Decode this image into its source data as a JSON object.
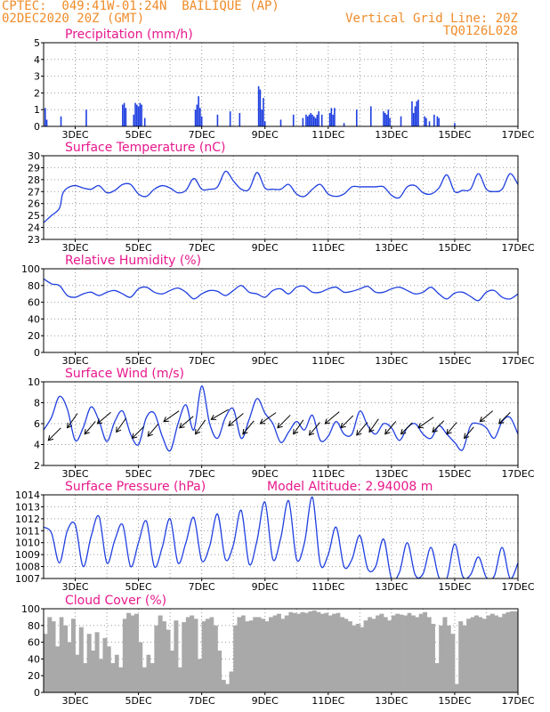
{
  "header": {
    "line1": "CPTEC:  049:41W-01:24N  BAILIQUE (AP)",
    "line2": "02DEC2020 20Z (GMT)",
    "grid_note": "Vertical Grid Line: 20Z",
    "code": "TQ0126L028"
  },
  "colors": {
    "header": "#f08c2a",
    "title": "#e8188c",
    "series": "#1f3fe0",
    "cloud": "#a9a9a9",
    "wind_arrow": "#000000"
  },
  "x_axis": {
    "unit": "day of December 2020 (20Z gridlines)",
    "range": [
      2.0,
      17.0
    ],
    "tick_positions": [
      3,
      5,
      7,
      9,
      11,
      13,
      15,
      17
    ],
    "tick_labels": [
      "3DEC",
      "5DEC",
      "7DEC",
      "9DEC",
      "11DEC",
      "13DEC",
      "15DEC",
      "17DEC"
    ],
    "minor_gridlines": [
      3,
      4,
      5,
      6,
      7,
      8,
      9,
      10,
      11,
      12,
      13,
      14,
      15,
      16
    ]
  },
  "chart_data": [
    {
      "key": "precip",
      "type": "bar",
      "title": "Precipitation (mm/h)",
      "ylim": [
        0,
        5
      ],
      "yticks": [
        0,
        1,
        2,
        3,
        4,
        5
      ],
      "x": [
        2.05,
        2.1,
        2.55,
        3.35,
        4.5,
        4.55,
        4.6,
        4.85,
        4.9,
        4.95,
        5.0,
        5.05,
        5.1,
        5.2,
        6.8,
        6.85,
        6.9,
        6.95,
        7.0,
        7.5,
        7.9,
        8.2,
        8.8,
        8.85,
        8.9,
        8.95,
        9.0,
        9.5,
        9.9,
        10.2,
        10.3,
        10.35,
        10.4,
        10.45,
        10.5,
        10.55,
        10.6,
        10.65,
        10.7,
        10.8,
        11.05,
        11.1,
        11.15,
        11.2,
        11.5,
        11.9,
        12.35,
        12.75,
        12.8,
        12.85,
        12.9,
        12.95,
        13.3,
        13.65,
        13.7,
        13.75,
        13.8,
        13.85,
        14.05,
        14.1,
        14.2,
        14.35,
        14.45,
        14.5,
        15.0
      ],
      "values": [
        1.1,
        0.4,
        0.6,
        1.0,
        1.3,
        1.4,
        1.1,
        0.7,
        1.4,
        1.3,
        1.2,
        1.4,
        1.3,
        0.5,
        1.0,
        1.3,
        1.8,
        1.1,
        0.6,
        0.7,
        0.9,
        0.8,
        2.4,
        2.2,
        1.0,
        1.7,
        0.3,
        0.4,
        0.7,
        0.5,
        0.7,
        0.6,
        0.7,
        0.8,
        0.7,
        0.6,
        0.5,
        0.7,
        0.9,
        0.7,
        0.8,
        1.1,
        0.7,
        1.1,
        0.2,
        1.0,
        1.2,
        0.9,
        0.8,
        0.7,
        1.0,
        0.5,
        0.6,
        1.5,
        0.8,
        1.2,
        1.5,
        1.6,
        0.6,
        0.5,
        0.3,
        0.7,
        0.6,
        0.5,
        0.2
      ]
    },
    {
      "key": "temp",
      "type": "line",
      "title": "Surface Temperature (nC)",
      "ylim": [
        23,
        30
      ],
      "yticks": [
        23,
        24,
        25,
        26,
        27,
        28,
        29,
        30
      ],
      "x": [
        2.0,
        2.25,
        2.5,
        2.6,
        2.75,
        3.0,
        3.25,
        3.5,
        3.75,
        4.0,
        4.25,
        4.5,
        4.75,
        5.0,
        5.25,
        5.5,
        5.75,
        6.0,
        6.25,
        6.5,
        6.75,
        7.0,
        7.25,
        7.5,
        7.75,
        8.0,
        8.25,
        8.5,
        8.75,
        9.0,
        9.25,
        9.5,
        9.75,
        10.0,
        10.25,
        10.5,
        10.75,
        11.0,
        11.25,
        11.5,
        11.75,
        12.0,
        12.25,
        12.5,
        12.75,
        13.0,
        13.25,
        13.5,
        13.75,
        14.0,
        14.25,
        14.5,
        14.75,
        15.0,
        15.25,
        15.5,
        15.75,
        16.0,
        16.25,
        16.5,
        16.75,
        17.0
      ],
      "values": [
        24.4,
        25.0,
        25.6,
        26.8,
        27.3,
        27.5,
        27.3,
        27.2,
        27.5,
        26.9,
        27.1,
        27.6,
        27.6,
        26.8,
        26.6,
        27.2,
        27.5,
        27.3,
        26.9,
        27.1,
        28.1,
        27.2,
        27.2,
        27.4,
        28.7,
        27.9,
        27.2,
        27.2,
        28.6,
        27.3,
        27.2,
        27.2,
        27.6,
        26.8,
        26.6,
        27.2,
        27.6,
        26.8,
        26.6,
        26.8,
        27.4,
        27.4,
        27.4,
        27.4,
        27.4,
        26.7,
        26.5,
        27.4,
        27.5,
        26.9,
        26.8,
        27.3,
        28.4,
        27.0,
        27.1,
        27.2,
        28.5,
        27.2,
        27.0,
        27.2,
        28.5,
        27.6
      ]
    },
    {
      "key": "rh",
      "type": "line",
      "title": "Relative Humidity (%)",
      "ylim": [
        0,
        100
      ],
      "yticks": [
        0,
        20,
        40,
        60,
        80,
        100
      ],
      "x": [
        2.0,
        2.25,
        2.5,
        2.75,
        3.0,
        3.25,
        3.5,
        3.75,
        4.0,
        4.25,
        4.5,
        4.75,
        5.0,
        5.25,
        5.5,
        5.75,
        6.0,
        6.25,
        6.5,
        6.75,
        7.0,
        7.25,
        7.5,
        7.75,
        8.0,
        8.25,
        8.5,
        8.75,
        9.0,
        9.25,
        9.5,
        9.75,
        10.0,
        10.25,
        10.5,
        10.75,
        11.0,
        11.25,
        11.5,
        11.75,
        12.0,
        12.25,
        12.5,
        12.75,
        13.0,
        13.25,
        13.5,
        13.75,
        14.0,
        14.25,
        14.5,
        14.75,
        15.0,
        15.25,
        15.5,
        15.75,
        16.0,
        16.25,
        16.5,
        16.75,
        17.0
      ],
      "values": [
        88,
        82,
        80,
        68,
        66,
        70,
        72,
        68,
        72,
        74,
        70,
        66,
        76,
        78,
        72,
        70,
        74,
        77,
        72,
        64,
        70,
        74,
        73,
        68,
        74,
        80,
        72,
        70,
        66,
        74,
        76,
        70,
        78,
        79,
        72,
        72,
        76,
        78,
        72,
        73,
        76,
        79,
        72,
        72,
        76,
        78,
        74,
        70,
        72,
        78,
        70,
        64,
        71,
        72,
        67,
        62,
        72,
        74,
        66,
        64,
        70
      ]
    },
    {
      "key": "wind",
      "type": "line",
      "title": "Surface Wind (m/s)",
      "ylim": [
        2,
        10
      ],
      "yticks": [
        2,
        4,
        6,
        8,
        10
      ],
      "x": [
        2.0,
        2.25,
        2.5,
        2.75,
        3.0,
        3.25,
        3.5,
        3.75,
        4.0,
        4.25,
        4.5,
        4.75,
        5.0,
        5.25,
        5.5,
        5.75,
        6.0,
        6.25,
        6.5,
        6.75,
        7.0,
        7.25,
        7.5,
        7.75,
        8.0,
        8.25,
        8.5,
        8.75,
        9.0,
        9.25,
        9.5,
        9.75,
        10.0,
        10.25,
        10.5,
        10.75,
        11.0,
        11.25,
        11.5,
        11.75,
        12.0,
        12.25,
        12.5,
        12.75,
        13.0,
        13.25,
        13.5,
        13.75,
        14.0,
        14.25,
        14.5,
        14.75,
        15.0,
        15.25,
        15.5,
        15.75,
        16.0,
        16.25,
        16.5,
        16.75,
        17.0
      ],
      "values": [
        5.4,
        6.6,
        8.6,
        7.4,
        4.4,
        5.6,
        7.6,
        6.3,
        4.3,
        6.2,
        7.2,
        5.0,
        4.0,
        6.6,
        7.0,
        4.8,
        3.4,
        6.0,
        7.8,
        5.4,
        9.6,
        6.0,
        4.6,
        6.6,
        7.4,
        4.6,
        6.4,
        8.4,
        7.0,
        6.0,
        4.2,
        5.2,
        6.2,
        5.4,
        6.8,
        4.4,
        4.8,
        6.2,
        5.0,
        5.0,
        7.2,
        5.8,
        5.0,
        6.0,
        5.6,
        4.4,
        5.6,
        6.0,
        5.0,
        4.6,
        5.8,
        5.0,
        4.2,
        3.5,
        5.8,
        6.0,
        5.6,
        4.6,
        6.2,
        6.6,
        5.0
      ],
      "arrows_x": [
        2.15,
        2.75,
        3.3,
        3.7,
        4.3,
        4.8,
        5.3,
        5.8,
        6.3,
        6.8,
        7.3,
        7.85,
        8.3,
        8.85,
        9.4,
        9.9,
        10.4,
        10.9,
        11.4,
        11.9,
        12.3,
        12.8,
        13.3,
        13.85,
        14.3,
        14.75,
        15.3,
        15.8,
        16.4
      ],
      "arrows_y": [
        4.4,
        5.6,
        5.0,
        6.0,
        5.2,
        4.6,
        4.8,
        6.2,
        5.6,
        5.0,
        6.4,
        5.8,
        5.0,
        6.0,
        5.6,
        5.0,
        4.9,
        6.0,
        5.6,
        4.9,
        5.2,
        5.0,
        5.0,
        5.6,
        5.2,
        5.0,
        4.6,
        6.2,
        6.0
      ],
      "arrows_speed": [
        5.5,
        5.5,
        5.2,
        5.5,
        5.3,
        5.2,
        5.0,
        5.8,
        5.6,
        5.4,
        6.2,
        6.0,
        5.4,
        6.0,
        5.6,
        5.4,
        5.2,
        5.8,
        5.4,
        5.2,
        5.0,
        5.2,
        5.0,
        5.8,
        5.0,
        4.8,
        4.6,
        5.2,
        5.0
      ],
      "arrows_dir_deg": [
        45,
        55,
        50,
        40,
        55,
        45,
        50,
        35,
        40,
        55,
        30,
        40,
        50,
        35,
        45,
        55,
        50,
        40,
        45,
        50,
        55,
        50,
        45,
        35,
        45,
        50,
        50,
        40,
        45
      ]
    },
    {
      "key": "pres",
      "type": "line",
      "title": "Surface Pressure (hPa)",
      "annotation": "Model Altitude: 2.94008 m",
      "ylim": [
        1007,
        1014
      ],
      "yticks": [
        1007,
        1008,
        1009,
        1010,
        1011,
        1012,
        1013,
        1014
      ],
      "x": [
        2.0,
        2.25,
        2.5,
        2.75,
        3.0,
        3.25,
        3.5,
        3.75,
        4.0,
        4.25,
        4.5,
        4.75,
        5.0,
        5.25,
        5.5,
        5.75,
        6.0,
        6.25,
        6.5,
        6.75,
        7.0,
        7.25,
        7.5,
        7.75,
        8.0,
        8.25,
        8.5,
        8.75,
        9.0,
        9.25,
        9.5,
        9.75,
        10.0,
        10.25,
        10.5,
        10.75,
        11.0,
        11.25,
        11.5,
        11.75,
        12.0,
        12.25,
        12.5,
        12.75,
        13.0,
        13.25,
        13.5,
        13.75,
        14.0,
        14.25,
        14.5,
        14.75,
        15.0,
        15.25,
        15.5,
        15.75,
        16.0,
        16.25,
        16.5,
        16.75,
        17.0
      ],
      "values": [
        1011.3,
        1010.8,
        1008.3,
        1011.0,
        1011.5,
        1008.0,
        1010.5,
        1012.2,
        1008.3,
        1010.2,
        1011.5,
        1008.0,
        1010.0,
        1011.8,
        1008.0,
        1009.6,
        1012.0,
        1008.3,
        1010.0,
        1012.1,
        1008.5,
        1009.7,
        1012.4,
        1008.6,
        1009.8,
        1012.7,
        1008.2,
        1010.2,
        1013.4,
        1008.6,
        1010.4,
        1013.5,
        1008.6,
        1010.0,
        1013.8,
        1008.2,
        1009.0,
        1011.3,
        1008.0,
        1008.6,
        1010.6,
        1007.8,
        1008.0,
        1010.3,
        1007.0,
        1007.5,
        1010.0,
        1007.3,
        1007.4,
        1009.6,
        1007.1,
        1007.0,
        1009.9,
        1007.2,
        1007.3,
        1008.8,
        1007.1,
        1007.2,
        1009.6,
        1007.0,
        1008.3
      ]
    },
    {
      "key": "cloud",
      "type": "area",
      "title": "Cloud Cover (%)",
      "ylim": [
        0,
        100
      ],
      "yticks": [
        0,
        20,
        40,
        60,
        80,
        100
      ],
      "x": [
        2.0,
        2.12,
        2.25,
        2.37,
        2.5,
        2.62,
        2.75,
        2.87,
        3.0,
        3.12,
        3.25,
        3.37,
        3.5,
        3.62,
        3.75,
        3.87,
        4.0,
        4.12,
        4.25,
        4.37,
        4.5,
        4.62,
        4.75,
        4.87,
        5.0,
        5.12,
        5.25,
        5.37,
        5.5,
        5.62,
        5.75,
        5.87,
        6.0,
        6.12,
        6.25,
        6.37,
        6.5,
        6.62,
        6.75,
        6.87,
        7.0,
        7.12,
        7.25,
        7.37,
        7.5,
        7.62,
        7.75,
        7.87,
        8.0,
        8.12,
        8.25,
        8.37,
        8.5,
        8.62,
        8.75,
        8.87,
        9.0,
        9.12,
        9.25,
        9.37,
        9.5,
        9.62,
        9.75,
        9.87,
        10.0,
        10.12,
        10.25,
        10.37,
        10.5,
        10.62,
        10.75,
        10.87,
        11.0,
        11.12,
        11.25,
        11.37,
        11.5,
        11.62,
        11.75,
        11.87,
        12.0,
        12.12,
        12.25,
        12.37,
        12.5,
        12.62,
        12.75,
        12.87,
        13.0,
        13.12,
        13.25,
        13.37,
        13.5,
        13.62,
        13.75,
        13.87,
        14.0,
        14.12,
        14.25,
        14.37,
        14.5,
        14.62,
        14.75,
        14.87,
        15.0,
        15.12,
        15.25,
        15.37,
        15.5,
        15.62,
        15.75,
        15.87,
        16.0,
        16.12,
        16.25,
        16.37,
        16.5,
        16.62,
        16.75,
        16.87,
        17.0
      ],
      "values": [
        70,
        90,
        85,
        55,
        90,
        80,
        60,
        88,
        45,
        78,
        35,
        70,
        50,
        72,
        40,
        65,
        55,
        35,
        45,
        30,
        88,
        95,
        92,
        94,
        60,
        30,
        45,
        35,
        80,
        92,
        85,
        75,
        50,
        86,
        30,
        84,
        90,
        92,
        88,
        40,
        85,
        88,
        90,
        80,
        50,
        15,
        10,
        25,
        80,
        90,
        92,
        85,
        86,
        90,
        90,
        88,
        85,
        90,
        92,
        94,
        88,
        92,
        96,
        95,
        94,
        96,
        95,
        97,
        98,
        96,
        94,
        95,
        92,
        94,
        95,
        90,
        88,
        85,
        80,
        82,
        78,
        86,
        90,
        88,
        92,
        94,
        90,
        86,
        92,
        94,
        93,
        92,
        95,
        92,
        90,
        94,
        96,
        90,
        82,
        35,
        80,
        90,
        80,
        70,
        10,
        85,
        80,
        88,
        90,
        92,
        90,
        88,
        92,
        94,
        92,
        90,
        94,
        96,
        97,
        97,
        98
      ]
    }
  ]
}
